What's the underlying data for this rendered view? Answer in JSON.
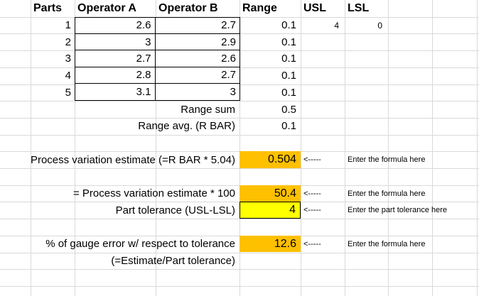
{
  "colors": {
    "highlight_orange": "#FFC000",
    "highlight_yellow": "#FFFF00"
  },
  "table": {
    "headers": {
      "parts": "Parts",
      "op_a": "Operator A",
      "op_b": "Operator B",
      "range": "Range",
      "usl": "USL",
      "lsl": "LSL"
    },
    "rows": [
      {
        "part": "1",
        "op_a": "2.6",
        "op_b": "2.7",
        "range": "0.1"
      },
      {
        "part": "2",
        "op_a": "3",
        "op_b": "2.9",
        "range": "0.1"
      },
      {
        "part": "3",
        "op_a": "2.7",
        "op_b": "2.6",
        "range": "0.1"
      },
      {
        "part": "4",
        "op_a": "2.8",
        "op_b": "2.7",
        "range": "0.1"
      },
      {
        "part": "5",
        "op_a": "3.1",
        "op_b": "3",
        "range": "0.1"
      }
    ],
    "usl_value": "4",
    "lsl_value": "0"
  },
  "summary": {
    "range_sum_label": "Range sum",
    "range_sum_value": "0.5",
    "range_avg_label": "Range avg. (R BAR)",
    "range_avg_value": "0.1"
  },
  "calcs": {
    "pv": {
      "label": "Process variation estimate (=R BAR * 5.04)",
      "value": "0.504",
      "arrow": "<-----",
      "note": "Enter the formula here"
    },
    "pv100": {
      "label": "= Process variation estimate * 100",
      "value": "50.4",
      "arrow": "<-----",
      "note": "Enter the formula here"
    },
    "tol": {
      "label": "Part tolerance (USL-LSL)",
      "value": "4",
      "arrow": "<-----",
      "note": "Enter the part tolerance here"
    },
    "err": {
      "label": "% of gauge error w/ respect to tolerance",
      "value": "12.6",
      "arrow": "<-----",
      "note": "Enter the formula here"
    },
    "err_formula": "(=Estimate/Part tolerance)"
  }
}
